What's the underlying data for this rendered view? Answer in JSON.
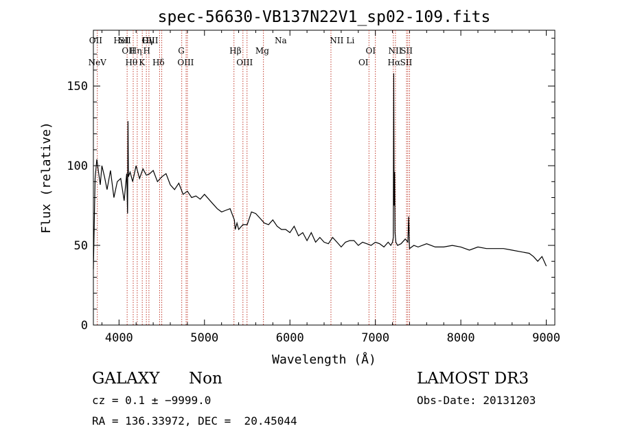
{
  "chart_data": {
    "type": "line",
    "title": "spec-56630-VB137N22V1_sp02-109.fits",
    "xlabel": "Wavelength (Å)",
    "ylabel": "Flux (relative)",
    "xlim": [
      3700,
      9100
    ],
    "ylim": [
      0,
      185
    ],
    "x_ticks": [
      4000,
      5000,
      6000,
      7000,
      8000,
      9000
    ],
    "y_ticks": [
      0,
      50,
      100,
      150
    ],
    "grid": false,
    "series": [
      {
        "x": [
          3700,
          3720,
          3740,
          3760,
          3780,
          3800,
          3830,
          3860,
          3900,
          3940,
          3980,
          4020,
          4060,
          4090,
          4100,
          4105,
          4110,
          4130,
          4160,
          4200,
          4240,
          4280,
          4320,
          4360,
          4400,
          4450,
          4500,
          4550,
          4600,
          4650,
          4700,
          4750,
          4800,
          4850,
          4900,
          4950,
          5000,
          5050,
          5100,
          5150,
          5200,
          5250,
          5300,
          5350,
          5360,
          5380,
          5400,
          5450,
          5500,
          5550,
          5600,
          5650,
          5700,
          5750,
          5800,
          5850,
          5900,
          5950,
          6000,
          6050,
          6100,
          6150,
          6200,
          6250,
          6300,
          6350,
          6400,
          6450,
          6500,
          6550,
          6600,
          6650,
          6700,
          6750,
          6800,
          6850,
          6900,
          6950,
          7000,
          7050,
          7100,
          7150,
          7180,
          7200,
          7210,
          7215,
          7220,
          7225,
          7230,
          7240,
          7260,
          7300,
          7350,
          7380,
          7390,
          7400,
          7450,
          7500,
          7600,
          7700,
          7800,
          7900,
          8000,
          8100,
          8200,
          8300,
          8400,
          8500,
          8600,
          8700,
          8800,
          8850,
          8900,
          8950,
          9000
        ],
        "y": [
          35,
          92,
          104,
          96,
          88,
          100,
          93,
          85,
          97,
          80,
          90,
          92,
          78,
          95,
          70,
          128,
          93,
          96,
          90,
          100,
          92,
          98,
          94,
          95,
          97,
          90,
          93,
          95,
          88,
          85,
          89,
          82,
          84,
          80,
          81,
          79,
          82,
          79,
          76,
          73,
          71,
          72,
          73,
          66,
          60,
          64,
          60,
          63,
          63,
          71,
          70,
          67,
          64,
          63,
          66,
          62,
          60,
          60,
          58,
          62,
          56,
          58,
          53,
          58,
          52,
          55,
          52,
          51,
          55,
          52,
          49,
          52,
          53,
          53,
          50,
          52,
          51,
          50,
          52,
          51,
          49,
          52,
          50,
          52,
          55,
          158,
          75,
          96,
          58,
          52,
          50,
          51,
          54,
          52,
          68,
          48,
          50,
          49,
          51,
          49,
          49,
          50,
          49,
          47,
          49,
          48,
          48,
          48,
          47,
          46,
          45,
          43,
          40,
          43,
          37
        ]
      }
    ],
    "lines_top": [
      {
        "label": "OII",
        "x": 3727
      },
      {
        "label": "HeI",
        "x": 4026
      },
      {
        "label": "SII",
        "x": 4070
      },
      {
        "label": "Hγ",
        "x": 4340
      },
      {
        "label": "OIII",
        "x": 4363
      },
      {
        "label": "Na",
        "x": 5892
      },
      {
        "label": "NII",
        "x": 6548
      },
      {
        "label": "Li",
        "x": 6708
      }
    ],
    "annotations": [
      {
        "label": "NeV",
        "x": 3746,
        "row": 3
      },
      {
        "label": "OII",
        "x": 4110,
        "row": 1
      },
      {
        "label": "Hη",
        "x": 4195,
        "row": 1
      },
      {
        "label": "H",
        "x": 4325,
        "row": 1
      },
      {
        "label": "Hθ",
        "x": 4145,
        "row": 2
      },
      {
        "label": "K",
        "x": 4268,
        "row": 2
      },
      {
        "label": "Hδ",
        "x": 4462,
        "row": 2
      },
      {
        "label": "G",
        "x": 4729,
        "row": 1
      },
      {
        "label": "OIII",
        "x": 4780,
        "row": 2
      },
      {
        "label": "Hβ",
        "x": 5362,
        "row": 1
      },
      {
        "label": "OIII",
        "x": 5470,
        "row": 2
      },
      {
        "label": "Mg",
        "x": 5676,
        "row": 1
      },
      {
        "label": "OI",
        "x": 6945,
        "row": 1
      },
      {
        "label": "OI",
        "x": 6860,
        "row": 2
      },
      {
        "label": "NII",
        "x": 7232,
        "row": 1
      },
      {
        "label": "Hα",
        "x": 7218,
        "row": 2
      },
      {
        "label": "SII",
        "x": 7365,
        "row": 1
      },
      {
        "label": "SII",
        "x": 7360,
        "row": 2
      }
    ],
    "line_markers": [
      3746,
      4095,
      4166,
      4213,
      4272,
      4320,
      4350,
      4475,
      4500,
      4734,
      4785,
      4800,
      5345,
      5450,
      5498,
      5690,
      6480,
      6925,
      7000,
      7210,
      7235,
      7365,
      7380,
      7400
    ]
  },
  "info": {
    "obj_class": "GALAXY",
    "subclass": "Non",
    "survey": "LAMOST DR3",
    "cz": "cz = 0.1 ± −9999.0",
    "obs_date": "Obs-Date: 20131203",
    "radec": "RA = 136.33972, DEC =  20.45044"
  }
}
